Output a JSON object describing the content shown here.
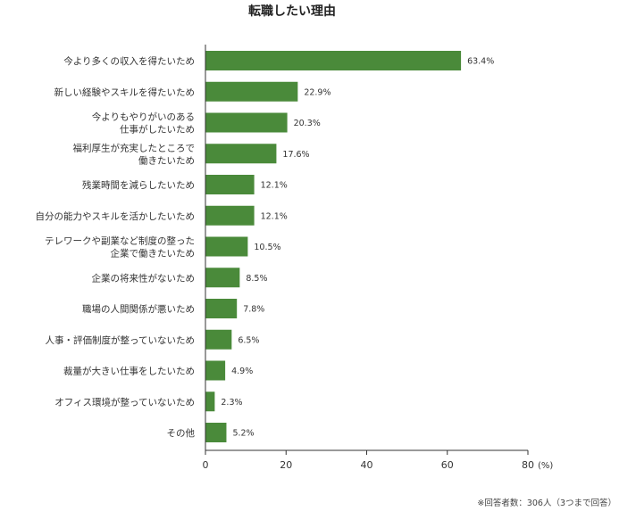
{
  "chart_data": {
    "type": "bar",
    "orientation": "horizontal",
    "title": "転職したい理由",
    "categories": [
      [
        "今より多くの収入を得たいため"
      ],
      [
        "新しい経験やスキルを得たいため"
      ],
      [
        "今よりもやりがいのある",
        "仕事がしたいため"
      ],
      [
        "福利厚生が充実したところで",
        "働きたいため"
      ],
      [
        "残業時間を減らしたいため"
      ],
      [
        "自分の能力やスキルを活かしたいため"
      ],
      [
        "テレワークや副業など制度の整った",
        "企業で働きたいため"
      ],
      [
        "企業の将来性がないため"
      ],
      [
        "職場の人間関係が悪いため"
      ],
      [
        "人事・評価制度が整っていないため"
      ],
      [
        "裁量が大きい仕事をしたいため"
      ],
      [
        "オフィス環境が整っていないため"
      ],
      [
        "その他"
      ]
    ],
    "values": [
      63.4,
      22.9,
      20.3,
      17.6,
      12.1,
      12.1,
      10.5,
      8.5,
      7.8,
      6.5,
      4.9,
      2.3,
      5.2
    ],
    "value_labels": [
      "63.4%",
      "22.9%",
      "20.3%",
      "17.6%",
      "12.1%",
      "12.1%",
      "10.5%",
      "8.5%",
      "7.8%",
      "6.5%",
      "4.9%",
      "2.3%",
      "5.2%"
    ],
    "xlim": [
      0,
      80
    ],
    "xticks": [
      0,
      20,
      40,
      60,
      80
    ],
    "tick_labels": [
      "0",
      "20",
      "40",
      "60",
      "80"
    ],
    "unit": "(%)",
    "grid": false,
    "bar_color": "#4a8a3a",
    "note": "※回答者数：306人（3つまで回答）"
  }
}
